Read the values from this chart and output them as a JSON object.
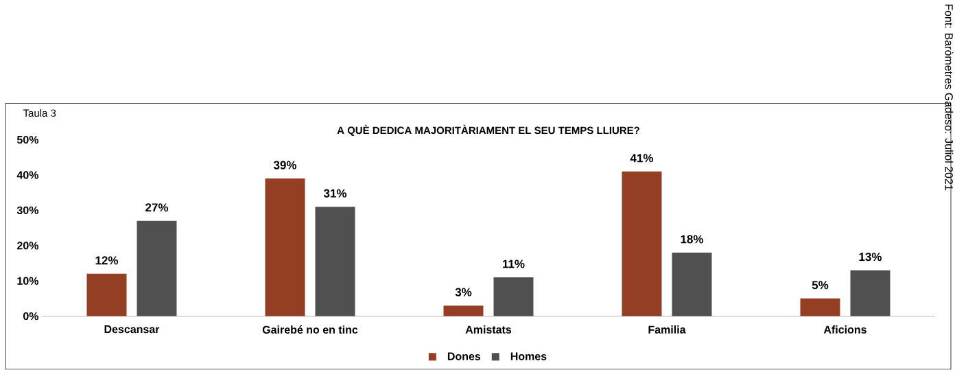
{
  "chart_data": {
    "type": "bar",
    "title": "A QUÈ DEDICA MAJORITÀRIAMENT  EL SEU TEMPS LLIURE?",
    "categories": [
      "Descansar",
      "Gairebé no en tinc",
      "Amistats",
      "Familia",
      "Aficions"
    ],
    "series": [
      {
        "name": "Dones",
        "color": "#943f24",
        "values": [
          12,
          39,
          3,
          41,
          5
        ],
        "value_labels": [
          "12%",
          "39%",
          "3%",
          "41%",
          "5%"
        ]
      },
      {
        "name": "Homes",
        "color": "#505050",
        "values": [
          27,
          31,
          11,
          18,
          13
        ],
        "value_labels": [
          "27%",
          "31%",
          "11%",
          "18%",
          "13%"
        ]
      }
    ],
    "ylim": [
      0,
      50
    ],
    "yticks": [
      {
        "value": 0,
        "label": "0%"
      },
      {
        "value": 10,
        "label": "10%"
      },
      {
        "value": 20,
        "label": "20%"
      },
      {
        "value": 30,
        "label": "30%"
      },
      {
        "value": 40,
        "label": "40%"
      },
      {
        "value": 50,
        "label": "50%"
      }
    ],
    "grid": false,
    "legend": "bottom",
    "annotations": [
      "Taula 3",
      "Font: Baròmetres Gadeso: Juliol 2021"
    ]
  }
}
